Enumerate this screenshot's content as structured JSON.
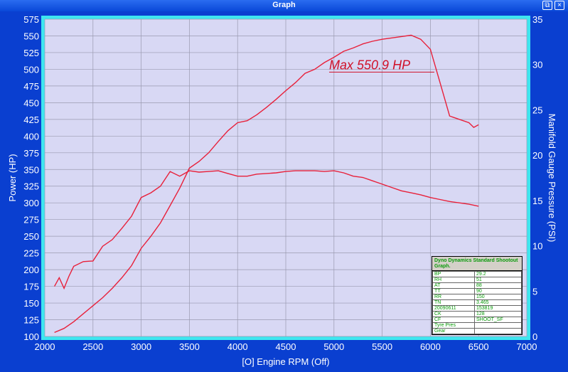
{
  "window": {
    "title": "Graph",
    "restore_glyph": "⧉",
    "close_glyph": "×"
  },
  "colors": {
    "background": "#0a3fd0",
    "plot_bg": "#d8d8f4",
    "plot_border": "#3ee6f0",
    "line": "#e8203a",
    "text": "#ffffff"
  },
  "chart_data": {
    "type": "line",
    "xlabel": "[O] Engine RPM (Off)",
    "ylabel": "Power (HP)",
    "y2label": "Manifold Gauge Pressure (PSI)",
    "xlim": [
      2000,
      7000
    ],
    "ylim": [
      100,
      575
    ],
    "y2lim": [
      0,
      35
    ],
    "x_ticks": [
      2000,
      2500,
      3000,
      3500,
      4000,
      4500,
      5000,
      5500,
      6000,
      6500,
      7000
    ],
    "y_ticks": [
      100,
      125,
      150,
      175,
      200,
      225,
      250,
      275,
      300,
      325,
      350,
      375,
      400,
      425,
      450,
      475,
      500,
      525,
      550,
      575
    ],
    "y2_ticks": [
      0,
      5,
      10,
      15,
      20,
      25,
      30,
      35
    ],
    "grid": true,
    "annotation": "Max 550.9 HP",
    "series": [
      {
        "axis": "left",
        "x": [
          2100,
          2200,
          2300,
          2400,
          2500,
          2600,
          2700,
          2800,
          2900,
          3000,
          3100,
          3200,
          3300,
          3400,
          3500,
          3600,
          3700,
          3800,
          3900,
          4000,
          4100,
          4200,
          4300,
          4400,
          4500,
          4600,
          4700,
          4800,
          4900,
          5000,
          5100,
          5200,
          5300,
          5400,
          5500,
          5600,
          5700,
          5800,
          5900,
          6000,
          6100,
          6200,
          6300,
          6400,
          6450,
          6500
        ],
        "y": [
          106,
          112,
          122,
          134,
          146,
          158,
          172,
          188,
          206,
          232,
          250,
          270,
          296,
          322,
          352,
          362,
          375,
          392,
          408,
          420,
          423,
          432,
          443,
          455,
          468,
          480,
          494,
          500,
          510,
          518,
          527,
          532,
          538,
          542,
          545,
          547,
          549,
          551,
          545,
          530,
          480,
          430,
          425,
          420,
          413,
          417
        ]
      },
      {
        "axis": "left",
        "x": [
          2100,
          2150,
          2200,
          2250,
          2300,
          2400,
          2500,
          2600,
          2700,
          2800,
          2900,
          3000,
          3100,
          3200,
          3300,
          3400,
          3500,
          3600,
          3700,
          3800,
          3900,
          4000,
          4100,
          4200,
          4300,
          4400,
          4500,
          4600,
          4700,
          4800,
          4900,
          5000,
          5100,
          5200,
          5300,
          5400,
          5500,
          5600,
          5700,
          5800,
          5900,
          6000,
          6100,
          6200,
          6300,
          6400,
          6500
        ],
        "y": [
          175,
          188,
          172,
          190,
          205,
          212,
          213,
          235,
          245,
          262,
          280,
          308,
          315,
          325,
          347,
          340,
          348,
          346,
          347,
          348,
          344,
          340,
          340,
          343,
          344,
          345,
          347,
          348,
          348,
          348,
          347,
          348,
          345,
          340,
          338,
          333,
          328,
          323,
          318,
          315,
          312,
          308,
          305,
          302,
          300,
          298,
          295
        ]
      }
    ]
  },
  "legend": {
    "header": "Dyno Dynamics Standard Shootout Graph.",
    "rows": [
      {
        "k": "BP",
        "v": "29.2"
      },
      {
        "k": "RH",
        "v": "51"
      },
      {
        "k": "AT",
        "v": "88"
      },
      {
        "k": "TT",
        "v": "90"
      },
      {
        "k": "RR",
        "v": "150"
      },
      {
        "k": "TN",
        "v": "3.465"
      },
      {
        "k": "20090611",
        "v": "153819"
      },
      {
        "k": "CK",
        "v": "128"
      },
      {
        "k": "CF",
        "v": "SHOOT_SF"
      },
      {
        "k": "Tyre Pres",
        "v": ""
      },
      {
        "k": "Gear",
        "v": ""
      }
    ]
  }
}
